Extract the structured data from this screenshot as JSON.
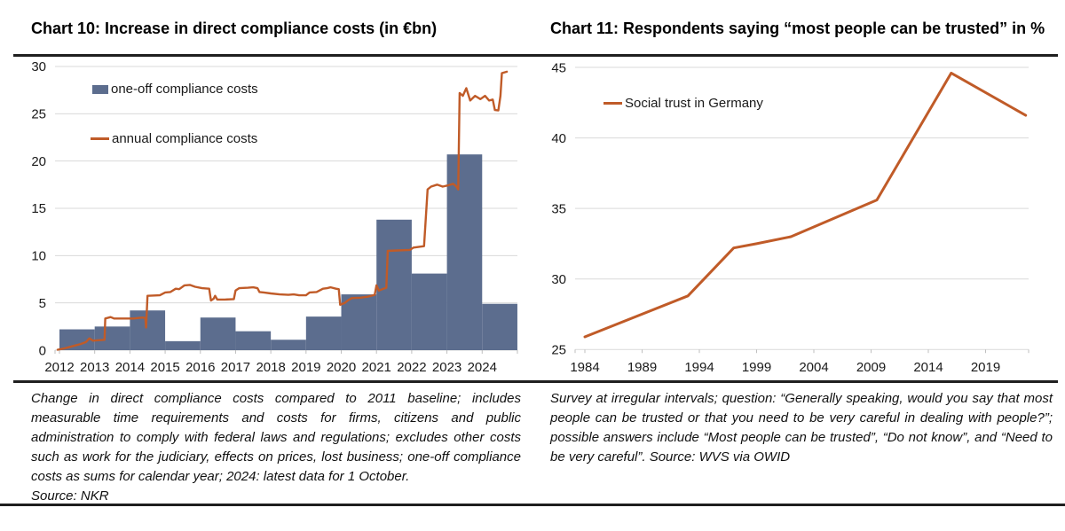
{
  "colors": {
    "bar": "#5c6d8e",
    "line": "#c05b28",
    "grid": "#d9d9d9",
    "tick": "#bfbfbf",
    "rule": "#1f1f1f",
    "text": "#1a1a1a"
  },
  "chart_data": [
    {
      "id": "chart10",
      "type": "bar+step-line",
      "title": "Chart 10: Increase in direct compliance costs (in €bn)",
      "xlabel": "",
      "ylabel": "",
      "xlim": [
        2011.9,
        2025
      ],
      "ylim": [
        0,
        30
      ],
      "y_ticks": [
        0,
        5,
        10,
        15,
        20,
        25,
        30
      ],
      "x_ticks": [
        2012,
        2013,
        2014,
        2015,
        2016,
        2017,
        2018,
        2019,
        2020,
        2021,
        2022,
        2023,
        2024
      ],
      "grid": "horizontal",
      "legend_position": "top-left-inside",
      "series": [
        {
          "name": "one-off compliance costs",
          "type": "bar",
          "color": "#5c6d8e",
          "categories": [
            2012,
            2013,
            2014,
            2015,
            2016,
            2017,
            2018,
            2019,
            2020,
            2021,
            2022,
            2023,
            2024
          ],
          "values": [
            2.2,
            2.5,
            4.2,
            0.95,
            3.45,
            2.0,
            1.1,
            3.55,
            5.9,
            13.8,
            8.1,
            20.7,
            4.9
          ]
        },
        {
          "name": "annual compliance costs",
          "type": "step-line",
          "color": "#c05b28",
          "points": [
            [
              2011.95,
              0.05
            ],
            [
              2012.15,
              0.2
            ],
            [
              2012.3,
              0.35
            ],
            [
              2012.45,
              0.5
            ],
            [
              2012.6,
              0.65
            ],
            [
              2012.75,
              0.85
            ],
            [
              2012.85,
              1.25
            ],
            [
              2012.95,
              1.0
            ],
            [
              2013.1,
              1.05
            ],
            [
              2013.28,
              1.1
            ],
            [
              2013.3,
              3.35
            ],
            [
              2013.45,
              3.5
            ],
            [
              2013.55,
              3.35
            ],
            [
              2014.1,
              3.35
            ],
            [
              2014.35,
              3.45
            ],
            [
              2014.44,
              3.4
            ],
            [
              2014.46,
              2.4
            ],
            [
              2014.5,
              5.75
            ],
            [
              2014.85,
              5.8
            ],
            [
              2015.0,
              6.1
            ],
            [
              2015.15,
              6.15
            ],
            [
              2015.3,
              6.5
            ],
            [
              2015.4,
              6.45
            ],
            [
              2015.55,
              6.85
            ],
            [
              2015.7,
              6.9
            ],
            [
              2015.85,
              6.7
            ],
            [
              2016.05,
              6.55
            ],
            [
              2016.25,
              6.5
            ],
            [
              2016.3,
              5.25
            ],
            [
              2016.38,
              5.45
            ],
            [
              2016.42,
              5.75
            ],
            [
              2016.48,
              5.35
            ],
            [
              2016.7,
              5.35
            ],
            [
              2016.95,
              5.4
            ],
            [
              2017.0,
              6.3
            ],
            [
              2017.1,
              6.55
            ],
            [
              2017.35,
              6.6
            ],
            [
              2017.5,
              6.65
            ],
            [
              2017.62,
              6.55
            ],
            [
              2017.68,
              6.15
            ],
            [
              2017.8,
              6.1
            ],
            [
              2018.0,
              6.0
            ],
            [
              2018.25,
              5.9
            ],
            [
              2018.5,
              5.85
            ],
            [
              2018.65,
              5.9
            ],
            [
              2018.8,
              5.8
            ],
            [
              2019.0,
              5.8
            ],
            [
              2019.1,
              6.1
            ],
            [
              2019.3,
              6.15
            ],
            [
              2019.48,
              6.5
            ],
            [
              2019.6,
              6.55
            ],
            [
              2019.7,
              6.65
            ],
            [
              2019.85,
              6.5
            ],
            [
              2019.93,
              6.45
            ],
            [
              2019.97,
              4.8
            ],
            [
              2020.1,
              5.0
            ],
            [
              2020.2,
              5.3
            ],
            [
              2020.3,
              5.5
            ],
            [
              2020.55,
              5.55
            ],
            [
              2020.75,
              5.65
            ],
            [
              2020.95,
              5.85
            ],
            [
              2021.0,
              6.85
            ],
            [
              2021.07,
              6.3
            ],
            [
              2021.2,
              6.5
            ],
            [
              2021.28,
              6.6
            ],
            [
              2021.32,
              10.5
            ],
            [
              2021.6,
              10.55
            ],
            [
              2021.95,
              10.6
            ],
            [
              2022.05,
              10.85
            ],
            [
              2022.35,
              11.0
            ],
            [
              2022.45,
              17.0
            ],
            [
              2022.55,
              17.3
            ],
            [
              2022.72,
              17.5
            ],
            [
              2022.88,
              17.3
            ],
            [
              2023.05,
              17.45
            ],
            [
              2023.18,
              17.6
            ],
            [
              2023.27,
              17.3
            ],
            [
              2023.32,
              17.0
            ],
            [
              2023.36,
              27.2
            ],
            [
              2023.45,
              26.9
            ],
            [
              2023.55,
              27.7
            ],
            [
              2023.66,
              26.4
            ],
            [
              2023.8,
              26.9
            ],
            [
              2023.95,
              26.55
            ],
            [
              2024.08,
              26.9
            ],
            [
              2024.2,
              26.4
            ],
            [
              2024.3,
              26.5
            ],
            [
              2024.36,
              25.4
            ],
            [
              2024.46,
              25.35
            ],
            [
              2024.52,
              26.9
            ],
            [
              2024.56,
              29.3
            ],
            [
              2024.7,
              29.45
            ]
          ]
        }
      ]
    },
    {
      "id": "chart11",
      "type": "line",
      "title": "Chart 11: Respondents saying “most people can be trusted” in %",
      "xlabel": "",
      "ylabel": "",
      "xlim": [
        1983.1,
        2023.8
      ],
      "ylim": [
        25,
        45
      ],
      "y_ticks": [
        25,
        30,
        35,
        40,
        45
      ],
      "x_ticks": [
        1984,
        1989,
        1994,
        1999,
        2004,
        2009,
        2014,
        2019
      ],
      "grid": "horizontal",
      "legend_position": "top-left-inside",
      "series": [
        {
          "name": "Social trust in Germany",
          "type": "line",
          "color": "#c05b28",
          "points": [
            [
              1984,
              25.9
            ],
            [
              1993,
              28.8
            ],
            [
              1997,
              32.2
            ],
            [
              1999,
              32.5
            ],
            [
              2002,
              33.0
            ],
            [
              2009.5,
              35.6
            ],
            [
              2016,
              44.6
            ],
            [
              2022.5,
              41.6
            ]
          ]
        }
      ]
    }
  ],
  "legend10": {
    "bar_label": "one-off compliance costs",
    "line_label": "annual compliance costs"
  },
  "legend11": {
    "line_label": "Social trust in Germany"
  },
  "footnote10": {
    "body": "Change in direct compliance costs compared to 2011 baseline; includes measurable time requirements and costs for firms, citizens and public administration to comply with federal laws and regulations; excludes other costs such as work for the judiciary, effects on prices, lost business; one-off compliance costs as sums for calendar year; 2024: latest data for 1 October.",
    "source": "Source: NKR"
  },
  "footnote11": {
    "body": "Survey at irregular intervals; question: “Generally speaking, would you say that most people can be trusted or that you need to be very careful in dealing with people?”; possible answers include “Most people can be trusted”, “Do not know”, and “Need to be very careful”. Source: WVS via OWID"
  }
}
